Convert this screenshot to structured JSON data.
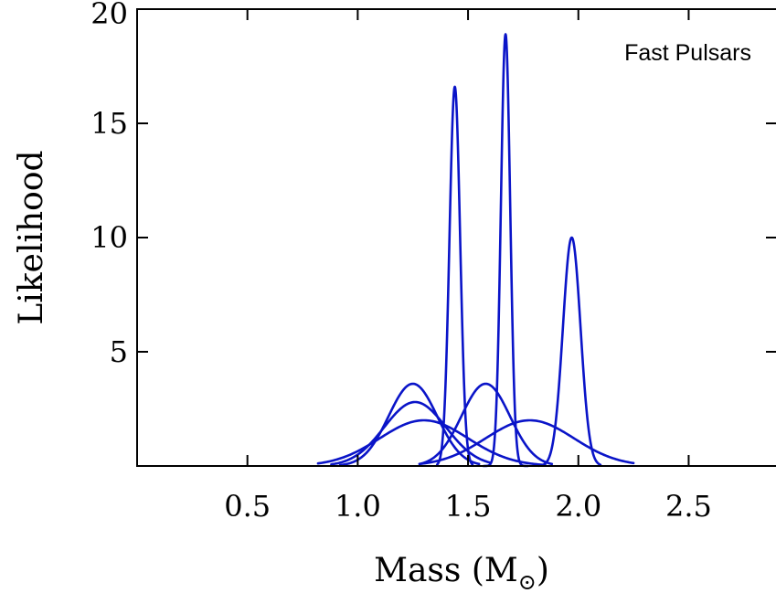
{
  "chart_data": {
    "type": "line",
    "title": "",
    "annotation": "Fast Pulsars",
    "xlabel": "Mass (M",
    "xlabel_subscript": "⊙",
    "xlabel_suffix": ")",
    "ylabel": "Likelihood",
    "xlim": [
      0.0,
      2.9
    ],
    "ylim": [
      0,
      20
    ],
    "grid": false,
    "legend": "none",
    "x_ticks": [
      0.5,
      1.0,
      1.5,
      2.0,
      2.5
    ],
    "x_tick_labels": [
      "0.5",
      "1.0",
      "1.5",
      "2.0",
      "2.5"
    ],
    "y_ticks": [
      5,
      10,
      15,
      20
    ],
    "y_tick_labels": [
      "5",
      "10",
      "15",
      "20"
    ],
    "line_color": "#0a14c8",
    "series": [
      {
        "mean": 1.25,
        "sd": 0.11,
        "peak": 3.6,
        "x_range": [
          0.92,
          1.55
        ]
      },
      {
        "mean": 1.26,
        "sd": 0.14,
        "peak": 2.8,
        "x_range": [
          0.88,
          1.6
        ]
      },
      {
        "mean": 1.3,
        "sd": 0.2,
        "peak": 2.0,
        "x_range": [
          0.82,
          1.85
        ]
      },
      {
        "mean": 1.44,
        "sd": 0.024,
        "peak": 16.6,
        "x_range": [
          1.36,
          1.52
        ]
      },
      {
        "mean": 1.67,
        "sd": 0.021,
        "peak": 18.9,
        "x_range": [
          1.57,
          1.77
        ]
      },
      {
        "mean": 1.58,
        "sd": 0.11,
        "peak": 3.6,
        "x_range": [
          1.28,
          1.88
        ]
      },
      {
        "mean": 1.78,
        "sd": 0.2,
        "peak": 2.0,
        "x_range": [
          1.28,
          2.25
        ]
      },
      {
        "mean": 1.97,
        "sd": 0.04,
        "peak": 10.0,
        "x_range": [
          1.82,
          2.1
        ]
      }
    ]
  }
}
